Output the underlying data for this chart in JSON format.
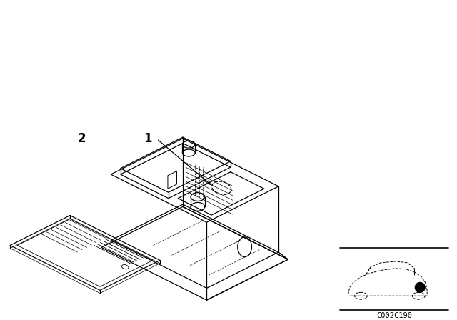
{
  "background_color": "#ffffff",
  "line_color": "#000000",
  "label_1": "1",
  "label_2": "2",
  "part_code": "C002C190",
  "figsize": [
    6.4,
    4.48
  ],
  "dpi": 100
}
